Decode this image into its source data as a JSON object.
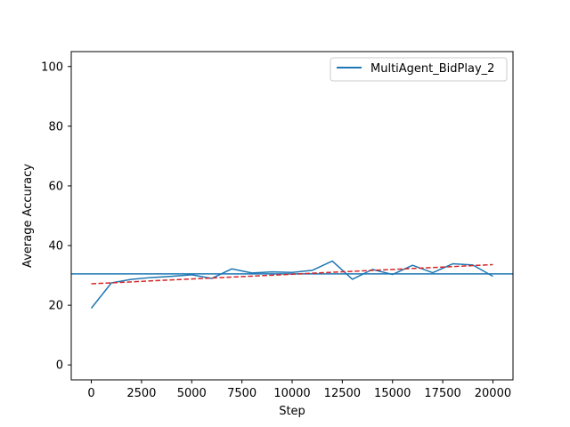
{
  "chart_data": {
    "type": "line",
    "xlabel": "Step",
    "ylabel": "Average Accuracy",
    "xlim": [
      -1000,
      21000
    ],
    "ylim": [
      -5,
      105
    ],
    "xticks": [
      0,
      2500,
      5000,
      7500,
      10000,
      12500,
      15000,
      17500,
      20000
    ],
    "yticks": [
      0,
      20,
      40,
      60,
      80,
      100
    ],
    "grid": false,
    "legend": {
      "position": "top-right"
    },
    "series": [
      {
        "name": "MultiAgent_BidPlay_2",
        "color": "#1f77b4",
        "style": "solid",
        "x": [
          0,
          1000,
          2000,
          3000,
          4000,
          5000,
          6000,
          7000,
          8000,
          9000,
          10000,
          11000,
          12000,
          13000,
          14000,
          15000,
          16000,
          17000,
          18000,
          19000,
          20000
        ],
        "y": [
          19,
          27.5,
          28.7,
          29.3,
          29.7,
          30.2,
          29.0,
          32.2,
          30.8,
          31.2,
          31.0,
          31.7,
          34.8,
          28.7,
          32.0,
          30.3,
          33.4,
          30.9,
          33.9,
          33.5,
          29.7
        ]
      },
      {
        "name": "",
        "color": "#d62728",
        "style": "dashed",
        "x": [
          0,
          20000
        ],
        "y": [
          27.2,
          33.6
        ]
      }
    ],
    "hlines": [
      {
        "y": 30.5,
        "color": "#1f77b4"
      }
    ]
  }
}
